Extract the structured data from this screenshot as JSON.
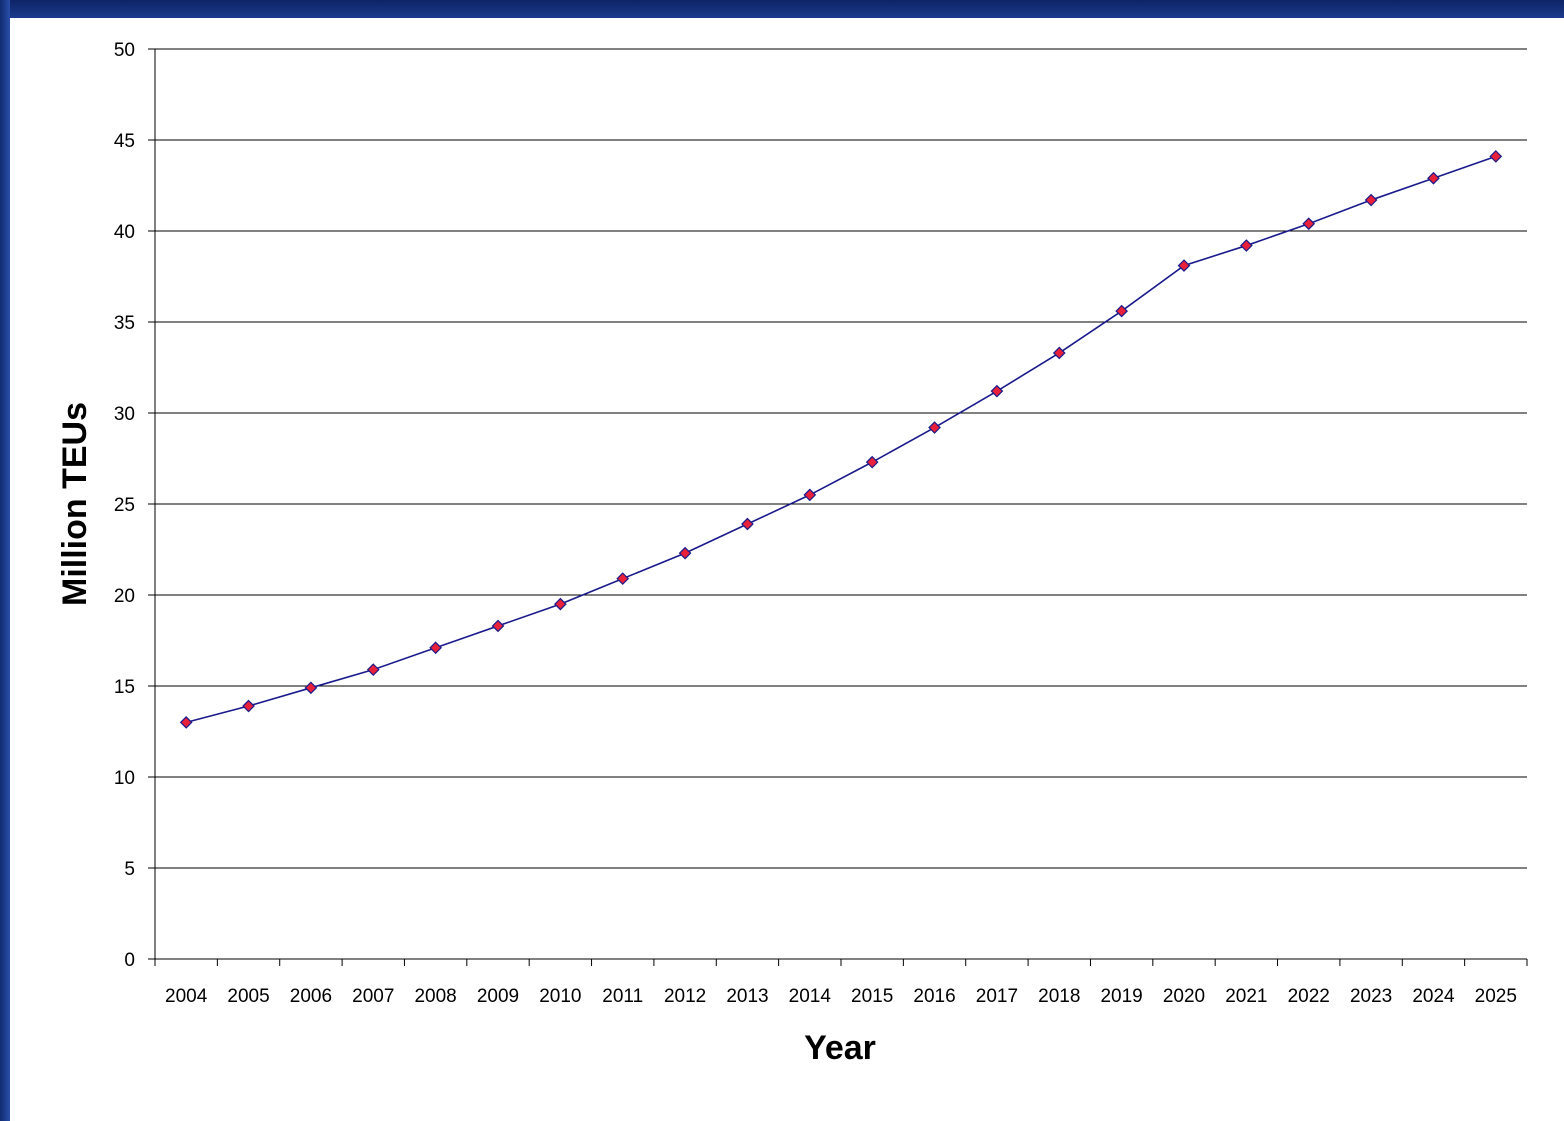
{
  "colors": {
    "background": "#1a3580",
    "plot_background": "#ffffff",
    "line": "#1a1a8c",
    "marker_fill": "#e8203a",
    "marker_stroke": "#1a1a8c",
    "gridline": "#000000"
  },
  "chart_data": {
    "type": "line",
    "title": "",
    "xlabel": "Year",
    "ylabel": "Million TEUs",
    "categories": [
      "2004",
      "2005",
      "2006",
      "2007",
      "2008",
      "2009",
      "2010",
      "2011",
      "2012",
      "2013",
      "2014",
      "2015",
      "2016",
      "2017",
      "2018",
      "2019",
      "2020",
      "2021",
      "2022",
      "2023",
      "2024",
      "2025"
    ],
    "series": [
      {
        "values": [
          13.0,
          13.9,
          14.9,
          15.9,
          17.1,
          18.3,
          19.5,
          20.9,
          22.3,
          23.9,
          25.5,
          27.3,
          29.2,
          31.2,
          33.3,
          35.6,
          38.1,
          39.2,
          40.4,
          41.7,
          42.9,
          44.1
        ],
        "marker": "diamond"
      }
    ],
    "ylim": [
      0,
      50
    ],
    "yticks": [
      0,
      5,
      10,
      15,
      20,
      25,
      30,
      35,
      40,
      45,
      50
    ],
    "grid": "horizontal",
    "legend": "none"
  }
}
